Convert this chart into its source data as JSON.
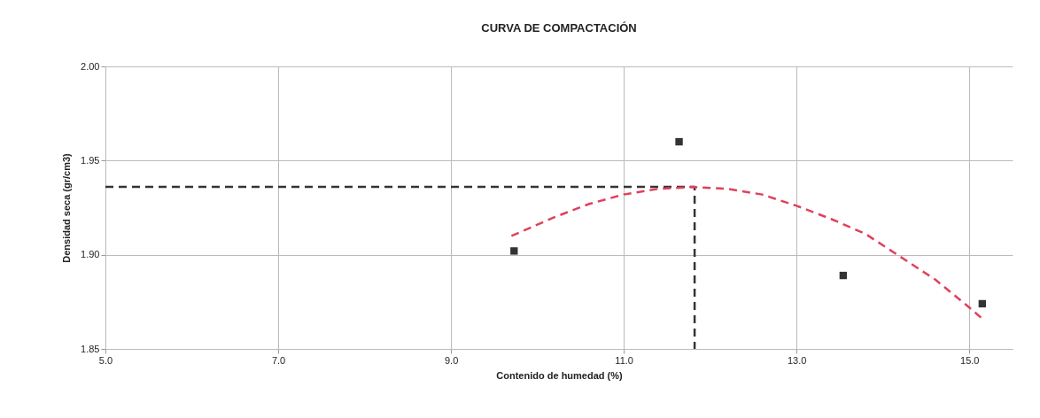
{
  "chart_data": {
    "type": "scatter",
    "title": "CURVA DE COMPACTACIÓN",
    "xlabel": "Contenido de humedad (%)",
    "ylabel": "Densidad seca (gr/cm3)",
    "xlim": [
      5.0,
      15.5
    ],
    "ylim": [
      1.85,
      2.0
    ],
    "xticks": [
      {
        "value": 5,
        "label": "5.0"
      },
      {
        "value": 7,
        "label": "7.0"
      },
      {
        "value": 9,
        "label": "9.0"
      },
      {
        "value": 11,
        "label": "11.0"
      },
      {
        "value": 13,
        "label": "13.0"
      },
      {
        "value": 15,
        "label": "15.0"
      }
    ],
    "yticks": [
      {
        "value": 1.85,
        "label": "1.85"
      },
      {
        "value": 1.9,
        "label": "1.90"
      },
      {
        "value": 1.95,
        "label": "1.95"
      },
      {
        "value": 2.0,
        "label": "2.00"
      }
    ],
    "grid": true,
    "series": [
      {
        "type": "line",
        "color": "#333333",
        "line_style": "dashed",
        "marker": "none",
        "x": [
          5.0,
          11.82,
          11.82
        ],
        "values": [
          1.936,
          1.936,
          1.85
        ]
      },
      {
        "type": "line",
        "color": "#e0405a",
        "line_style": "dashed",
        "marker": "none",
        "x": [
          9.7,
          10.2,
          10.6,
          11.0,
          11.4,
          11.8,
          12.2,
          12.6,
          13.0,
          13.4,
          13.8,
          14.2,
          14.6,
          15.0,
          15.15
        ],
        "values": [
          1.91,
          1.92,
          1.927,
          1.932,
          1.935,
          1.936,
          1.935,
          1.932,
          1.926,
          1.919,
          1.911,
          1.899,
          1.887,
          1.872,
          1.866
        ]
      },
      {
        "color": "#333333",
        "marker": "square",
        "x": [
          9.73,
          11.64,
          13.54,
          15.15
        ],
        "values": [
          1.902,
          1.96,
          1.889,
          1.874
        ]
      }
    ]
  }
}
